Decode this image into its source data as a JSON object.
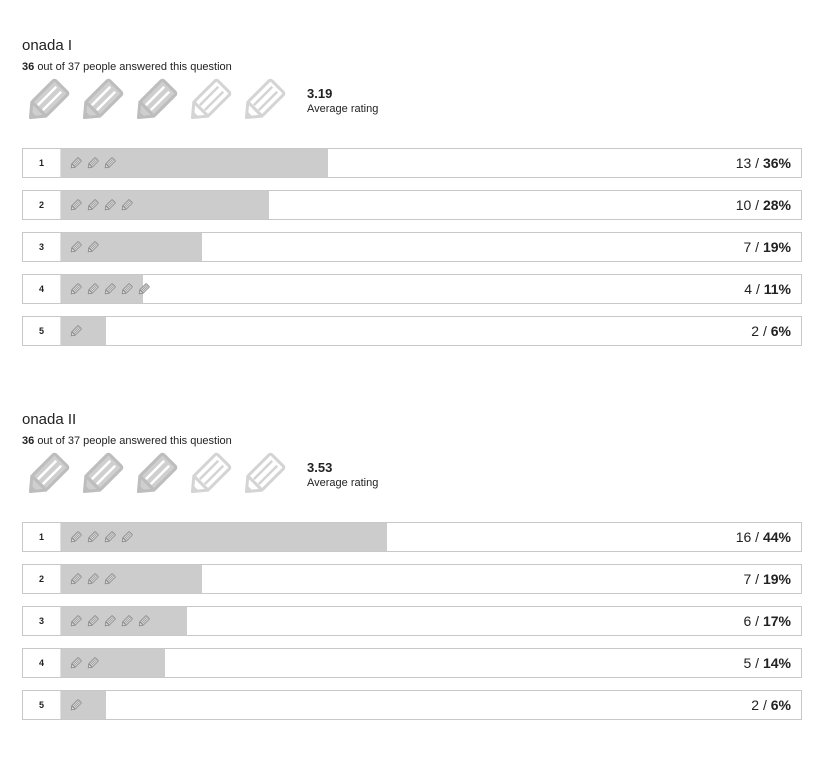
{
  "icon": "pencil-icon",
  "colors": {
    "bar_fill": "#cccccc",
    "border": "#c8c8c8",
    "icon_gray": "#bbbbbb",
    "icon_light": "#dddddd"
  },
  "questions": [
    {
      "title": "onada I",
      "answered_count": "36",
      "answered_text": "out of 37 people answered this question",
      "average_value": "3.19",
      "average_label": "Average rating",
      "stars_filled": 3,
      "stars_total": 5,
      "rows": [
        {
          "label": "1",
          "icons": 3,
          "count": "13",
          "sep": " / ",
          "percent": "36%",
          "fraction": 0.36
        },
        {
          "label": "2",
          "icons": 4,
          "count": "10",
          "sep": " / ",
          "percent": "28%",
          "fraction": 0.28
        },
        {
          "label": "3",
          "icons": 2,
          "count": "7",
          "sep": " / ",
          "percent": "19%",
          "fraction": 0.19
        },
        {
          "label": "4",
          "icons": 5,
          "count": "4",
          "sep": " / ",
          "percent": "11%",
          "fraction": 0.11
        },
        {
          "label": "5",
          "icons": 1,
          "count": "2",
          "sep": " / ",
          "percent": "6%",
          "fraction": 0.06
        }
      ]
    },
    {
      "title": "onada II",
      "answered_count": "36",
      "answered_text": "out of 37 people answered this question",
      "average_value": "3.53",
      "average_label": "Average rating",
      "stars_filled": 3,
      "stars_total": 5,
      "rows": [
        {
          "label": "1",
          "icons": 4,
          "count": "16",
          "sep": " / ",
          "percent": "44%",
          "fraction": 0.44
        },
        {
          "label": "2",
          "icons": 3,
          "count": "7",
          "sep": " / ",
          "percent": "19%",
          "fraction": 0.19
        },
        {
          "label": "3",
          "icons": 5,
          "count": "6",
          "sep": " / ",
          "percent": "17%",
          "fraction": 0.17
        },
        {
          "label": "4",
          "icons": 2,
          "count": "5",
          "sep": " / ",
          "percent": "14%",
          "fraction": 0.14
        },
        {
          "label": "5",
          "icons": 1,
          "count": "2",
          "sep": " / ",
          "percent": "6%",
          "fraction": 0.06
        }
      ]
    }
  ]
}
